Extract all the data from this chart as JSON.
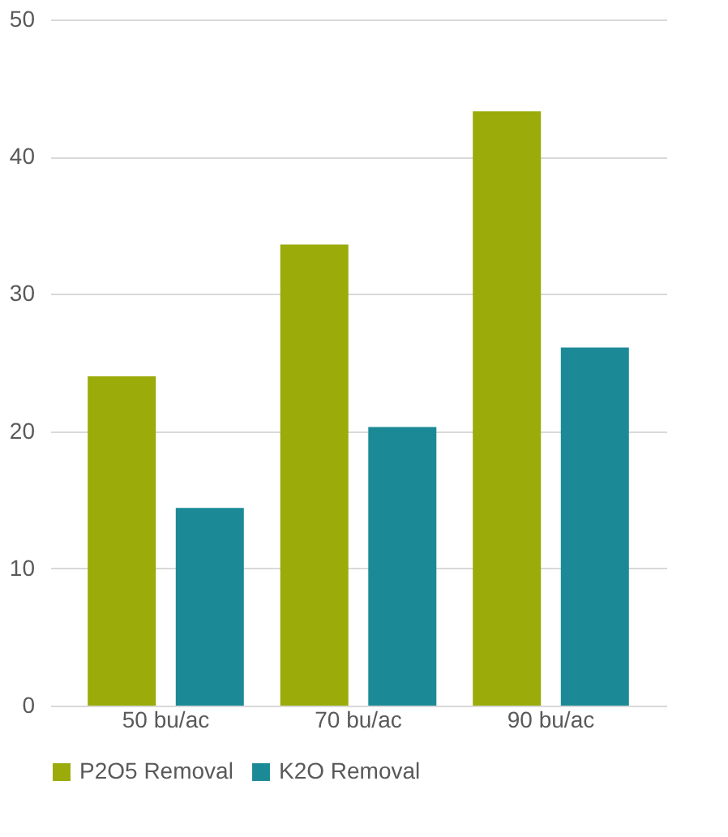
{
  "chart_data": {
    "type": "bar",
    "categories": [
      "50 bu/ac",
      "70 bu/ac",
      "90 bu/ac"
    ],
    "series": [
      {
        "name": "P2O5 Removal",
        "color": "#9aab0a",
        "values": [
          24.0,
          33.6,
          43.3
        ]
      },
      {
        "name": "K2O Removal",
        "color": "#1b8a96",
        "values": [
          14.4,
          20.3,
          26.1
        ]
      }
    ],
    "ylim": [
      0,
      50
    ],
    "yticks": [
      0,
      10,
      20,
      30,
      40,
      50
    ],
    "grid": "y",
    "legend": "bottom"
  }
}
